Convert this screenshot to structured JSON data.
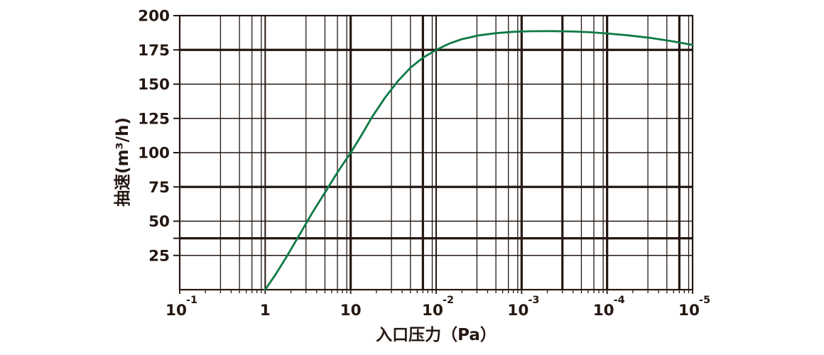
{
  "chart_data": {
    "type": "line",
    "title": "",
    "xlabel": "入口压力（Pa）",
    "ylabel": "抽速(m³/h)",
    "background": "#ffffff",
    "axis_color": "#241712",
    "ylim": [
      0,
      200
    ],
    "x_decades": 6,
    "x_scale": "log",
    "grid": true,
    "legend": "none",
    "x_ticks": [
      {
        "base": "10",
        "exp": "-1",
        "label": "10⁻¹"
      },
      {
        "base": "1",
        "exp": "",
        "label": "1"
      },
      {
        "base": "10",
        "exp": "",
        "label": "10"
      },
      {
        "base": "10",
        "exp": "-2",
        "label": "10⁻²"
      },
      {
        "base": "10",
        "exp": "-3",
        "label": "10⁻³"
      },
      {
        "base": "10",
        "exp": "-4",
        "label": "10⁻⁴"
      },
      {
        "base": "10",
        "exp": "-5",
        "label": "10⁻⁵"
      }
    ],
    "y_ticks": [
      200,
      175,
      150,
      125,
      100,
      75,
      50,
      25
    ],
    "y_axis_tick_marks": [
      25,
      37.5,
      50,
      75,
      100,
      125,
      150,
      175,
      200
    ],
    "h_gridlines": [
      {
        "value": 25,
        "thick": false
      },
      {
        "value": 37.5,
        "thick": true
      },
      {
        "value": 50,
        "thick": false
      },
      {
        "value": 75,
        "thick": true
      },
      {
        "value": 100,
        "thick": false
      },
      {
        "value": 125,
        "thick": false
      },
      {
        "value": 150,
        "thick": false
      },
      {
        "value": 175,
        "thick": true
      }
    ],
    "minor_log_ticks": [
      3,
      5,
      7,
      9
    ],
    "thick_x_decades": [
      2,
      4,
      5
    ],
    "thick_minor_lines": [
      {
        "decade": 2,
        "k": 7
      },
      {
        "decade": 4,
        "k": 3
      },
      {
        "decade": 5,
        "k": 7
      }
    ],
    "series": [
      {
        "name": "抽速",
        "color": "#0e7a45",
        "points": [
          [
            1,
            0
          ],
          [
            1.12,
            11
          ],
          [
            1.25,
            24
          ],
          [
            1.4,
            40
          ],
          [
            1.55,
            56
          ],
          [
            1.7,
            71
          ],
          [
            1.85,
            86
          ],
          [
            2,
            100
          ],
          [
            2.12,
            112
          ],
          [
            2.25,
            126
          ],
          [
            2.4,
            140
          ],
          [
            2.55,
            152
          ],
          [
            2.7,
            162
          ],
          [
            2.85,
            169.5
          ],
          [
            3,
            175
          ],
          [
            3.15,
            179.5
          ],
          [
            3.3,
            182.8
          ],
          [
            3.5,
            185.6
          ],
          [
            3.7,
            187.2
          ],
          [
            3.9,
            188.2
          ],
          [
            4.1,
            188.6
          ],
          [
            4.35,
            188.7
          ],
          [
            4.6,
            188.4
          ],
          [
            4.8,
            187.9
          ],
          [
            5,
            187
          ],
          [
            5.25,
            185.6
          ],
          [
            5.5,
            183.8
          ],
          [
            5.75,
            181.4
          ],
          [
            6,
            178.6
          ]
        ]
      }
    ]
  }
}
